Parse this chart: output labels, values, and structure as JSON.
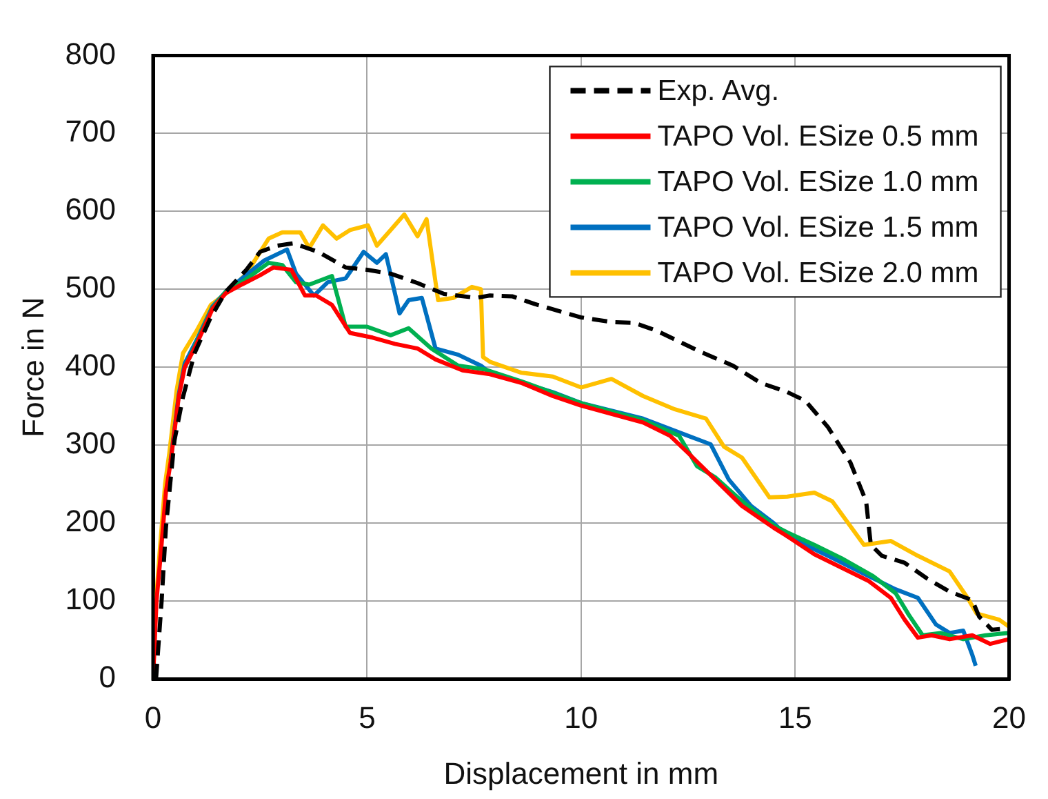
{
  "chart_data": {
    "type": "line",
    "xlabel": "Displacement in mm",
    "ylabel": "Force in N",
    "xlim": [
      0,
      20
    ],
    "xticks": [
      0,
      5,
      10,
      15,
      20
    ],
    "ylim": [
      0,
      800
    ],
    "yticks": [
      0,
      100,
      200,
      300,
      400,
      500,
      600,
      700,
      800
    ],
    "grid": true,
    "legend": "top right",
    "marker": "none",
    "series": [
      {
        "name": "Exp. Avg.",
        "color": "#000000",
        "line_style": "dashed",
        "x": [
          0.07,
          0.2,
          0.3,
          0.5,
          0.7,
          0.97,
          1.34,
          1.7,
          2.18,
          2.5,
          2.9,
          3.28,
          3.86,
          4.5,
          5.0,
          5.55,
          6.18,
          6.8,
          7.55,
          7.87,
          8.39,
          8.92,
          9.99,
          10.71,
          11.24,
          11.76,
          12.82,
          13.55,
          14.19,
          14.82,
          15.24,
          15.77,
          16.29,
          16.66,
          16.77,
          17.03,
          17.56,
          18.08,
          18.61,
          19.14,
          19.3,
          19.6,
          20.0
        ],
        "values": [
          0,
          100,
          194,
          306,
          362,
          418,
          463,
          497,
          525,
          548,
          556,
          559,
          548,
          528,
          525,
          520,
          508,
          494,
          489,
          492,
          491,
          481,
          464,
          458,
          457,
          447,
          419,
          402,
          380,
          368,
          357,
          323,
          278,
          228,
          172,
          158,
          149,
          129,
          112,
          101,
          80,
          63,
          65
        ]
      },
      {
        "name": "TAPO Vol. ESize 0.5 mm",
        "color": "#ff0000",
        "line_style": "solid",
        "x": [
          0,
          0.08,
          0.18,
          0.3,
          0.41,
          0.6,
          0.74,
          1.02,
          1.39,
          1.7,
          2.07,
          2.5,
          2.81,
          3.23,
          3.55,
          3.81,
          4.18,
          4.6,
          5.13,
          5.65,
          6.18,
          6.6,
          7.23,
          7.87,
          8.6,
          9.34,
          9.99,
          10.71,
          11.45,
          12.08,
          12.5,
          13.13,
          13.76,
          14.5,
          14.82,
          15.45,
          16.08,
          16.71,
          17.24,
          17.56,
          17.87,
          18.19,
          18.61,
          19.14,
          19.56,
          20
        ],
        "values": [
          0,
          100,
          160,
          240,
          278,
          362,
          400,
          430,
          475,
          495,
          506,
          518,
          528,
          525,
          492,
          492,
          480,
          444,
          438,
          430,
          424,
          410,
          396,
          391,
          380,
          363,
          351,
          340,
          329,
          312,
          290,
          256,
          222,
          194,
          183,
          160,
          143,
          126,
          104,
          76,
          53,
          56,
          51,
          56,
          45,
          51
        ]
      },
      {
        "name": "TAPO Vol. ESize 1.0 mm",
        "color": "#00b050",
        "line_style": "solid",
        "x": [
          0.74,
          1.02,
          1.39,
          1.7,
          2.1,
          2.7,
          3.02,
          3.34,
          3.65,
          4.18,
          4.5,
          5.0,
          5.55,
          5.97,
          6.5,
          7.13,
          7.76,
          8.6,
          9.99,
          11.45,
          12.29,
          12.71,
          13.13,
          13.76,
          14.5,
          14.82,
          15.45,
          16.08,
          16.82,
          17.35,
          17.66,
          17.98,
          18.4,
          18.93,
          19.45,
          20
        ],
        "values": [
          400,
          432,
          476,
          497,
          510,
          534,
          531,
          509,
          506,
          517,
          452,
          452,
          441,
          450,
          424,
          402,
          397,
          382,
          354,
          332,
          312,
          273,
          259,
          228,
          197,
          188,
          172,
          155,
          132,
          110,
          82,
          56,
          59,
          51,
          56,
          59
        ]
      },
      {
        "name": "TAPO Vol. ESize 1.5 mm",
        "color": "#0070c0",
        "line_style": "solid",
        "x": [
          0.41,
          0.6,
          0.74,
          1.02,
          1.39,
          1.7,
          2.1,
          2.6,
          3.13,
          3.34,
          3.76,
          4.08,
          4.5,
          4.92,
          5.23,
          5.44,
          5.76,
          5.97,
          6.28,
          6.6,
          7.13,
          7.66,
          7.87,
          9.34,
          10.0,
          11.45,
          12.5,
          13.03,
          13.45,
          13.97,
          14.5,
          14.82,
          15.77,
          16.61,
          17.35,
          17.87,
          18.29,
          18.61,
          18.93,
          19.14,
          19.22
        ],
        "values": [
          280,
          365,
          405,
          435,
          478,
          497,
          515,
          537,
          551,
          520,
          492,
          509,
          514,
          548,
          534,
          545,
          469,
          486,
          489,
          424,
          416,
          402,
          393,
          368,
          354,
          334,
          312,
          301,
          256,
          222,
          200,
          183,
          158,
          135,
          115,
          104,
          70,
          59,
          62,
          31,
          17
        ]
      },
      {
        "name": "TAPO Vol. ESize 2.0 mm",
        "color": "#ffc000",
        "line_style": "solid",
        "x": [
          0,
          0.07,
          0.15,
          0.28,
          0.38,
          0.55,
          0.7,
          1.0,
          1.35,
          1.76,
          2.18,
          2.7,
          3.02,
          3.44,
          3.65,
          3.97,
          4.29,
          4.6,
          5.02,
          5.23,
          5.55,
          5.87,
          6.18,
          6.39,
          6.66,
          7.02,
          7.45,
          7.66,
          7.71,
          7.87,
          8.6,
          9.34,
          10.0,
          10.71,
          11.45,
          12.19,
          12.92,
          13.34,
          13.76,
          14.4,
          14.82,
          15.45,
          15.87,
          16.61,
          17.24,
          17.87,
          18.61,
          19.03,
          19.24,
          19.77,
          20.0
        ],
        "values": [
          0,
          100,
          160,
          250,
          290,
          370,
          418,
          445,
          480,
          497,
          520,
          565,
          573,
          573,
          553,
          582,
          565,
          576,
          582,
          556,
          576,
          596,
          568,
          590,
          486,
          489,
          503,
          500,
          413,
          407,
          393,
          388,
          374,
          385,
          363,
          346,
          334,
          298,
          284,
          233,
          234,
          239,
          228,
          172,
          177,
          158,
          138,
          104,
          84,
          76,
          67
        ]
      }
    ]
  }
}
